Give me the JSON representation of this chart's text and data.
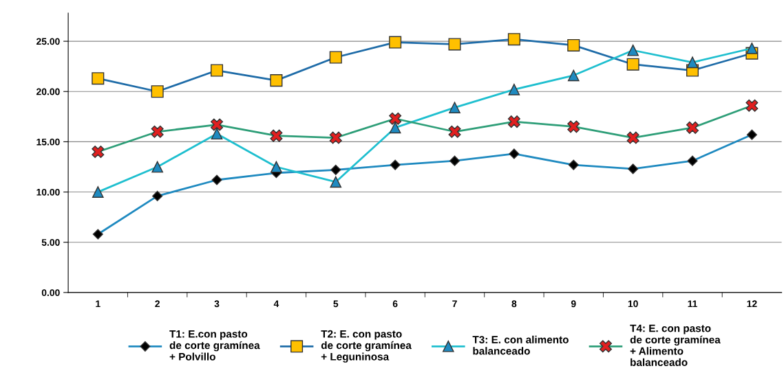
{
  "chart_data": {
    "type": "line",
    "categories": [
      "1",
      "2",
      "3",
      "4",
      "5",
      "6",
      "7",
      "8",
      "9",
      "10",
      "11",
      "12"
    ],
    "ylim": [
      0,
      27.8
    ],
    "yticks": [
      {
        "value": 0,
        "label": "0.00"
      },
      {
        "value": 5,
        "label": "5.00"
      },
      {
        "value": 10,
        "label": "10.00"
      },
      {
        "value": 15,
        "label": "15.00"
      },
      {
        "value": 20,
        "label": "20.00"
      },
      {
        "value": 25,
        "label": "25.00"
      }
    ],
    "grid": "y",
    "legend": "bottom",
    "series": [
      {
        "name": "T1: E.con pasto\nde corte gramínea\n+ Polvillo",
        "color": "#1f8ac0",
        "marker": "diamond",
        "colors": [
          "#000000",
          "#000000",
          "#000000",
          "#000000",
          "#000000",
          "#000000",
          "#000000",
          "#000000",
          "#000000",
          "#000000",
          "#000000",
          "#000000"
        ],
        "values": [
          5.8,
          9.6,
          11.2,
          11.9,
          12.2,
          12.7,
          13.1,
          13.8,
          12.7,
          12.3,
          13.1,
          15.7
        ]
      },
      {
        "name": "T2: E. con pasto\nde corte gramínea\n+ Leguninosa",
        "color": "#1f6ca8",
        "marker": "square",
        "colors": [
          "#ffc000",
          "#ffc000",
          "#ffc000",
          "#ffc000",
          "#ffc000",
          "#ffc000",
          "#ffc000",
          "#ffc000",
          "#ffc000",
          "#ffc000",
          "#ffc000",
          "#ffc000"
        ],
        "values": [
          21.3,
          20.0,
          22.1,
          21.1,
          23.4,
          24.9,
          24.7,
          25.2,
          24.6,
          22.7,
          22.1,
          23.8
        ]
      },
      {
        "name": "T3: E. con alimento\nbalanceado",
        "color": "#1fbfcf",
        "marker": "triangle",
        "colors": [
          "#1f8ac0",
          "#1f8ac0",
          "#1f8ac0",
          "#1f8ac0",
          "#1f8ac0",
          "#1f8ac0",
          "#1f8ac0",
          "#1f8ac0",
          "#1f8ac0",
          "#1f8ac0",
          "#1f8ac0",
          "#1f8ac0"
        ],
        "values": [
          10.0,
          12.5,
          15.8,
          12.5,
          11.0,
          16.4,
          18.4,
          20.2,
          21.6,
          24.1,
          22.9,
          24.3
        ]
      },
      {
        "name": "T4: E. con pasto\nde corte gramínea\n+ Alimento\nbalanceado",
        "color": "#2e9e78",
        "marker": "cross",
        "colors": [
          "#e02020",
          "#e02020",
          "#e02020",
          "#e02020",
          "#e02020",
          "#e02020",
          "#e02020",
          "#e02020",
          "#e02020",
          "#e02020",
          "#e02020",
          "#e02020"
        ],
        "values": [
          14.0,
          16.0,
          16.7,
          15.6,
          15.4,
          17.3,
          16.0,
          17.0,
          16.5,
          15.4,
          16.4,
          18.6
        ]
      }
    ]
  }
}
